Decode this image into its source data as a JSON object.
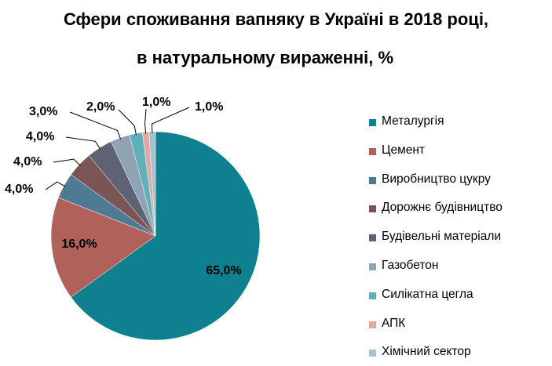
{
  "chart_data": {
    "type": "pie",
    "title": "Сфери споживання вапняку в Україні в 2018 році,",
    "subtitle": "в натуральному вираженні, %",
    "legend_position": "right",
    "slices": [
      {
        "label": "Металургія",
        "value": 65.0,
        "text": "65,0%",
        "color": "#0e8090"
      },
      {
        "label": "Цемент",
        "value": 16.0,
        "text": "16,0%",
        "color": "#b0625a"
      },
      {
        "label": "Виробництво  цукру",
        "value": 4.0,
        "text": "4,0%",
        "color": "#4f7a94"
      },
      {
        "label": "Дорожнє будівництво",
        "value": 4.0,
        "text": "4,0%",
        "color": "#7b5554"
      },
      {
        "label": "Будівельні  матеріали",
        "value": 4.0,
        "text": "4,0%",
        "color": "#5d6375"
      },
      {
        "label": "Газобетон",
        "value": 3.0,
        "text": "3,0%",
        "color": "#8fa3b3"
      },
      {
        "label": "Силікатна  цегла",
        "value": 2.0,
        "text": "2,0%",
        "color": "#5fb0bb"
      },
      {
        "label": "АПК",
        "value": 1.0,
        "text": "1,0%",
        "color": "#e2a7a1"
      },
      {
        "label": "Хімічний  сектор",
        "value": 1.0,
        "text": "1,0%",
        "color": "#a6c2cf"
      }
    ]
  }
}
